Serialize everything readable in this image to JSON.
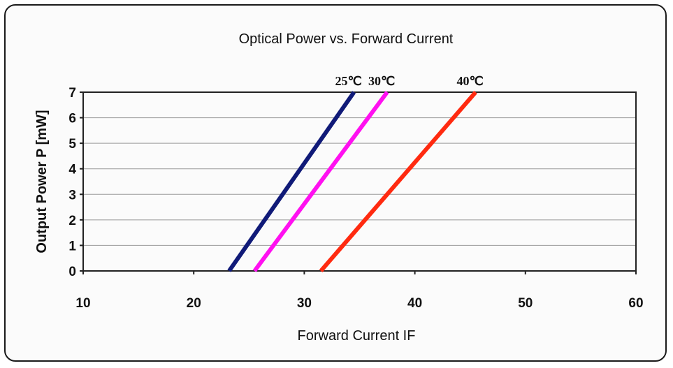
{
  "chart_data": {
    "type": "line",
    "title": "Optical Power vs. Forward Current",
    "xlabel": "Forward Current  IF",
    "ylabel": "Output Power  P [mW]",
    "xlim": [
      10,
      60
    ],
    "ylim": [
      0,
      7
    ],
    "x_ticks": [
      "10",
      "20",
      "30",
      "40",
      "50",
      "60"
    ],
    "y_ticks": [
      "0",
      "1",
      "2",
      "3",
      "4",
      "5",
      "6",
      "7"
    ],
    "grid": "horizontal",
    "legend": "labels at line ends (top)",
    "series": [
      {
        "name": "25℃",
        "color": "#101a78",
        "x": [
          23.2,
          34.5
        ],
        "y": [
          0,
          7
        ]
      },
      {
        "name": "30℃",
        "color": "#ff10f0",
        "x": [
          25.5,
          37.5
        ],
        "y": [
          0,
          7
        ]
      },
      {
        "name": "40℃",
        "color": "#ff2a10",
        "x": [
          31.5,
          45.5
        ],
        "y": [
          0,
          7
        ]
      }
    ]
  }
}
